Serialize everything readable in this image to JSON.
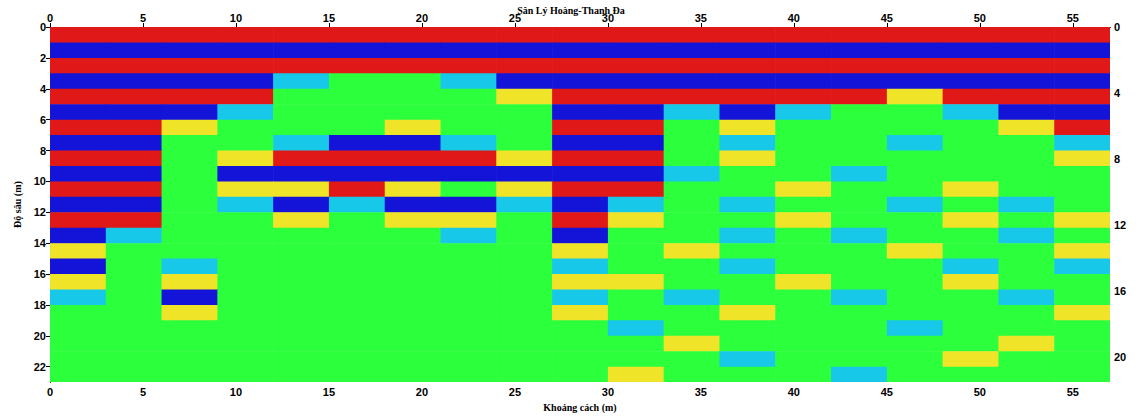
{
  "chart_data": {
    "type": "heatmap",
    "title": "Sân Lý Hoàng-Thanh Đa",
    "x_label": "Khoảng cách (m)",
    "y_label": "Độ sâu (m)",
    "xlim": [
      0,
      57
    ],
    "xticks": [
      0,
      5,
      10,
      15,
      20,
      25,
      30,
      35,
      40,
      45,
      50,
      55
    ],
    "ylim": [
      0,
      23
    ],
    "yticks": [
      0,
      2,
      4,
      6,
      8,
      10,
      12,
      14,
      16,
      18,
      20,
      22
    ],
    "y2lim": [
      0,
      21.5
    ],
    "y2ticks": [
      0,
      4,
      8,
      12,
      16,
      20
    ],
    "grid": false,
    "color_range": [
      -1,
      1
    ],
    "cells": {
      "x_edges": [
        0,
        3,
        6,
        9,
        12,
        15,
        18,
        21,
        24,
        27,
        30,
        33,
        36,
        39,
        42,
        45,
        48,
        51,
        54,
        57
      ],
      "y_edges": [
        0,
        1,
        2,
        3,
        4,
        5,
        6,
        7,
        8,
        9,
        10,
        11,
        12,
        13,
        14,
        15,
        16,
        17,
        18,
        19,
        20,
        21,
        22,
        23
      ],
      "values": [
        [
          1,
          1,
          1,
          1,
          1,
          1,
          1,
          1,
          1,
          1,
          1,
          1,
          1,
          1,
          1,
          1,
          1,
          1,
          1
        ],
        [
          -1,
          -1,
          -1,
          -1,
          -1,
          -1,
          -1,
          -1,
          -1,
          -1,
          -1,
          -1,
          -1,
          -1,
          -1,
          -1,
          -1,
          -1,
          -1
        ],
        [
          1,
          1,
          1,
          1,
          1,
          1,
          1,
          1,
          1,
          1,
          1,
          1,
          1,
          1,
          1,
          1,
          1,
          1,
          1
        ],
        [
          -1,
          -1,
          -1,
          -1,
          -0.5,
          0,
          0,
          -0.5,
          -1,
          -1,
          -1,
          -1,
          -1,
          -1,
          -1,
          -1,
          -1,
          -1,
          -1
        ],
        [
          1,
          1,
          1,
          1,
          0,
          0,
          0,
          0,
          0.5,
          1,
          1,
          1,
          1,
          1,
          1,
          0.5,
          1,
          1,
          1
        ],
        [
          -1,
          -1,
          -1,
          -0.5,
          0,
          0,
          0,
          0,
          0,
          -1,
          -1,
          -0.5,
          -1,
          -0.5,
          0,
          0,
          -0.5,
          -1,
          -1
        ],
        [
          1,
          1,
          0.5,
          0,
          0,
          0,
          0.5,
          0,
          0,
          1,
          1,
          0,
          0.5,
          0,
          0,
          0,
          0,
          0.5,
          1
        ],
        [
          -1,
          -1,
          0,
          0,
          -0.5,
          -1,
          -1,
          -0.5,
          0,
          -1,
          -1,
          0,
          -0.5,
          0,
          0,
          -0.5,
          0,
          0,
          -0.5
        ],
        [
          1,
          1,
          0,
          0.5,
          1,
          1,
          1,
          1,
          0.5,
          1,
          1,
          0,
          0.5,
          0,
          0,
          0,
          0,
          0,
          0.5
        ],
        [
          -1,
          -1,
          0,
          -1,
          -1,
          -1,
          -1,
          -1,
          -1,
          -1,
          -1,
          -0.5,
          0,
          0,
          -0.5,
          0,
          0,
          0,
          0
        ],
        [
          1,
          1,
          0,
          0.5,
          0.5,
          1,
          0.5,
          0,
          0.5,
          1,
          1,
          0,
          0,
          0.5,
          0,
          0,
          0.5,
          0,
          0
        ],
        [
          -1,
          -1,
          0,
          -0.5,
          -1,
          -0.5,
          -1,
          -1,
          -0.5,
          -1,
          -0.5,
          0,
          -0.5,
          0,
          0,
          -0.5,
          0,
          -0.5,
          0
        ],
        [
          1,
          1,
          0,
          0,
          0.5,
          0,
          0.5,
          0.5,
          0,
          1,
          0.5,
          0,
          0,
          0.5,
          0,
          0,
          0.5,
          0,
          0.5
        ],
        [
          -1,
          -0.5,
          0,
          0,
          0,
          0,
          0,
          -0.5,
          0,
          -1,
          0,
          0,
          -0.5,
          0,
          -0.5,
          0,
          0,
          -0.5,
          0
        ],
        [
          0.5,
          0,
          0,
          0,
          0,
          0,
          0,
          0,
          0,
          0.5,
          0,
          0.5,
          0,
          0,
          0,
          0.5,
          0,
          0,
          0.5
        ],
        [
          -1,
          0,
          -0.5,
          0,
          0,
          0,
          0,
          0,
          0,
          -0.5,
          0,
          0,
          -0.5,
          0,
          0,
          0,
          -0.5,
          0,
          -0.5
        ],
        [
          0.5,
          0,
          0.5,
          0,
          0,
          0,
          0,
          0,
          0,
          0.5,
          0.5,
          0,
          0,
          0.5,
          0,
          0,
          0.5,
          0,
          0
        ],
        [
          -0.5,
          0,
          -1,
          0,
          0,
          0,
          0,
          0,
          0,
          -0.5,
          0,
          -0.5,
          0,
          0,
          -0.5,
          0,
          0,
          -0.5,
          0
        ],
        [
          0,
          0,
          0.5,
          0,
          0,
          0,
          0,
          0,
          0,
          0.5,
          0,
          0,
          0.5,
          0,
          0,
          0,
          0,
          0,
          0.5
        ],
        [
          0,
          0,
          0,
          0,
          0,
          0,
          0,
          0,
          0,
          0,
          -0.5,
          0,
          0,
          0,
          0,
          -0.5,
          0,
          0,
          0
        ],
        [
          0,
          0,
          0,
          0,
          0,
          0,
          0,
          0,
          0,
          0,
          0,
          0.5,
          0,
          0,
          0,
          0,
          0,
          0.5,
          0
        ],
        [
          0,
          0,
          0,
          0,
          0,
          0,
          0,
          0,
          0,
          0,
          0,
          0,
          -0.5,
          0,
          0,
          0,
          0.5,
          0,
          0
        ],
        [
          0,
          0,
          0,
          0,
          0,
          0,
          0,
          0,
          0,
          0,
          0.5,
          0,
          0,
          0,
          -0.5,
          0,
          0,
          0,
          0
        ]
      ]
    }
  }
}
